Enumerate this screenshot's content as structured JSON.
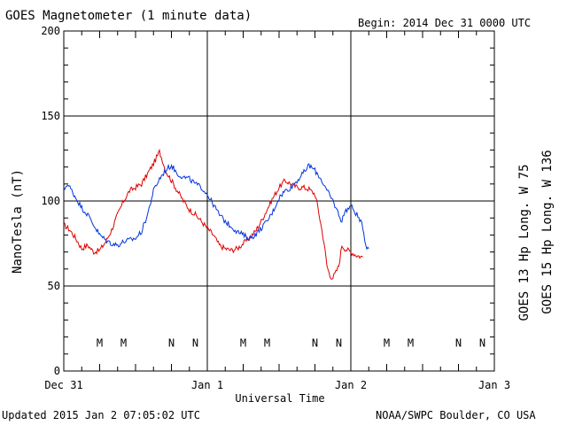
{
  "header": {
    "title": "GOES Magnetometer (1 minute data)",
    "begin": "Begin:  2014 Dec 31 0000 UTC"
  },
  "footer": {
    "updated": "Updated 2015 Jan  2 07:05:02 UTC",
    "credit": "NOAA/SWPC Boulder, CO USA"
  },
  "chart_data": {
    "type": "line",
    "xlabel": "Universal Time",
    "ylabel": "NanoTesla (nT)",
    "x_unit": "hours since 2014 Dec 31 0000 UTC",
    "xlim": [
      0,
      72
    ],
    "ylim": [
      0,
      200
    ],
    "y_ticks": [
      0,
      50,
      100,
      150,
      200
    ],
    "x_ticks": [
      {
        "x": 0,
        "label": "Dec 31"
      },
      {
        "x": 24,
        "label": "Jan 1"
      },
      {
        "x": 48,
        "label": "Jan 2"
      },
      {
        "x": 72,
        "label": "Jan 3"
      }
    ],
    "grid": true,
    "series": [
      {
        "name": "GOES 13 Hp  Long. W 75",
        "color": "#e00000",
        "points": [
          [
            0,
            86
          ],
          [
            1,
            83
          ],
          [
            2,
            78
          ],
          [
            3,
            72
          ],
          [
            4,
            74
          ],
          [
            5,
            70
          ],
          [
            6,
            71
          ],
          [
            7,
            76
          ],
          [
            8,
            83
          ],
          [
            9,
            92
          ],
          [
            10,
            100
          ],
          [
            11,
            106
          ],
          [
            12,
            108
          ],
          [
            13,
            110
          ],
          [
            14,
            116
          ],
          [
            15,
            122
          ],
          [
            16,
            129
          ],
          [
            16.5,
            124
          ],
          [
            17,
            118
          ],
          [
            18,
            112
          ],
          [
            19,
            106
          ],
          [
            20,
            100
          ],
          [
            21,
            95
          ],
          [
            22,
            92
          ],
          [
            23,
            88
          ],
          [
            24,
            84
          ],
          [
            25,
            80
          ],
          [
            25.5,
            77
          ],
          [
            26,
            74
          ],
          [
            27,
            72
          ],
          [
            28,
            71
          ],
          [
            29,
            72
          ],
          [
            30,
            75
          ],
          [
            31,
            78
          ],
          [
            32,
            82
          ],
          [
            33,
            88
          ],
          [
            34,
            95
          ],
          [
            35,
            102
          ],
          [
            36,
            108
          ],
          [
            37,
            112
          ],
          [
            38,
            110
          ],
          [
            39,
            108
          ],
          [
            40,
            108
          ],
          [
            41,
            107
          ],
          [
            42,
            104
          ],
          [
            42.5,
            96
          ],
          [
            43,
            86
          ],
          [
            43.5,
            76
          ],
          [
            44,
            62
          ],
          [
            44.5,
            56
          ],
          [
            45,
            55
          ],
          [
            45.5,
            58
          ],
          [
            46,
            62
          ],
          [
            46.5,
            74
          ],
          [
            47,
            72
          ],
          [
            48,
            70
          ],
          [
            49,
            68
          ],
          [
            50,
            67
          ]
        ]
      },
      {
        "name": "GOES 15 Hp  Long. W 136",
        "color": "#0033dd",
        "points": [
          [
            0,
            106
          ],
          [
            0.5,
            110
          ],
          [
            1,
            108
          ],
          [
            2,
            102
          ],
          [
            3,
            96
          ],
          [
            4,
            92
          ],
          [
            5,
            86
          ],
          [
            6,
            80
          ],
          [
            7,
            77
          ],
          [
            8,
            75
          ],
          [
            9,
            74
          ],
          [
            10,
            76
          ],
          [
            11,
            77
          ],
          [
            12,
            78
          ],
          [
            13,
            82
          ],
          [
            14,
            92
          ],
          [
            15,
            106
          ],
          [
            16,
            113
          ],
          [
            17,
            118
          ],
          [
            18,
            121
          ],
          [
            19,
            116
          ],
          [
            20,
            114
          ],
          [
            21,
            113
          ],
          [
            22,
            110
          ],
          [
            23,
            108
          ],
          [
            24,
            104
          ],
          [
            25,
            98
          ],
          [
            26,
            92
          ],
          [
            27,
            88
          ],
          [
            28,
            85
          ],
          [
            29,
            82
          ],
          [
            30,
            80
          ],
          [
            31,
            78
          ],
          [
            32,
            80
          ],
          [
            33,
            84
          ],
          [
            34,
            88
          ],
          [
            35,
            94
          ],
          [
            36,
            102
          ],
          [
            37,
            106
          ],
          [
            38,
            108
          ],
          [
            39,
            112
          ],
          [
            40,
            116
          ],
          [
            41,
            121
          ],
          [
            42,
            118
          ],
          [
            43,
            113
          ],
          [
            44,
            106
          ],
          [
            45,
            100
          ],
          [
            45.5,
            96
          ],
          [
            46,
            92
          ],
          [
            46.5,
            88
          ],
          [
            47,
            94
          ],
          [
            48,
            97
          ],
          [
            49,
            92
          ],
          [
            50,
            85
          ],
          [
            50.5,
            74
          ],
          [
            51,
            72
          ]
        ]
      }
    ],
    "annotations": [
      {
        "label": "M",
        "x": 6,
        "color": "#e00000"
      },
      {
        "label": "M",
        "x": 10,
        "color": "#0033dd"
      },
      {
        "label": "N",
        "x": 18,
        "color": "#e00000"
      },
      {
        "label": "N",
        "x": 22,
        "color": "#0033dd"
      },
      {
        "label": "M",
        "x": 30,
        "color": "#e00000"
      },
      {
        "label": "M",
        "x": 34,
        "color": "#0033dd"
      },
      {
        "label": "N",
        "x": 42,
        "color": "#e00000"
      },
      {
        "label": "N",
        "x": 46,
        "color": "#0033dd"
      },
      {
        "label": "M",
        "x": 54,
        "color": "#e00000"
      },
      {
        "label": "M",
        "x": 58,
        "color": "#0033dd"
      },
      {
        "label": "N",
        "x": 66,
        "color": "#e00000"
      },
      {
        "label": "N",
        "x": 70,
        "color": "#0033dd"
      }
    ],
    "annotation_y": 17
  }
}
